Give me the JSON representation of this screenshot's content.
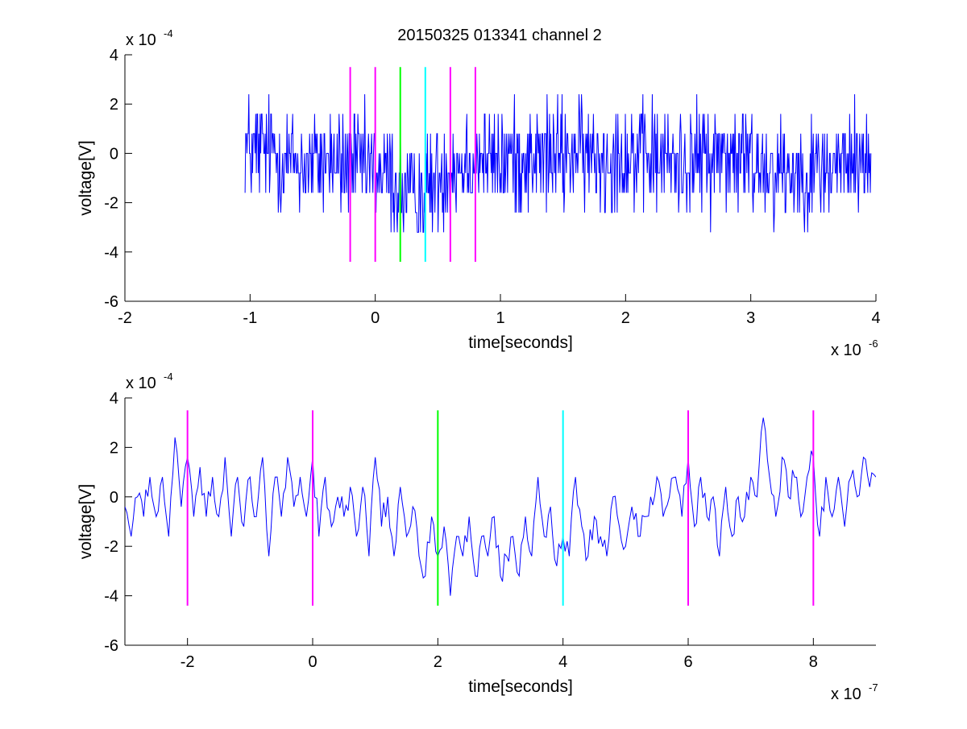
{
  "figure": {
    "title": "20150325 013341 channel 2"
  },
  "chart_data": [
    {
      "type": "line",
      "title": "20150325 013341 channel 2",
      "xlabel": "time[seconds]",
      "ylabel": "voltage[V]",
      "x_multiplier": "x 10",
      "x_exponent": "-6",
      "y_multiplier": "x 10",
      "y_exponent": "-4",
      "xlim": [
        -2,
        4
      ],
      "ylim": [
        -6,
        4
      ],
      "x_ticks": [
        -2,
        -1,
        0,
        1,
        2,
        3,
        4
      ],
      "x_tick_labels": [
        "-2",
        "-1",
        "0",
        "1",
        "2",
        "3",
        "4"
      ],
      "y_ticks": [
        -6,
        -4,
        -2,
        0,
        2,
        4
      ],
      "y_tick_labels": [
        "-6",
        "-4",
        "-2",
        "0",
        "2",
        "4"
      ],
      "grid": false,
      "series": [
        {
          "kind": "signal",
          "color": "#0000ff",
          "x_start": -1.04,
          "x_end": 3.96,
          "x": [
            -1.04,
            -0.9,
            -0.8,
            -0.7,
            -0.6,
            -0.5,
            -0.4,
            -0.3,
            -0.2,
            -0.1,
            0,
            0.1,
            0.2,
            0.3,
            0.4,
            0.5,
            0.6,
            0.7,
            0.8,
            1.0,
            1.2,
            1.4,
            1.6,
            1.8,
            2.0,
            2.2,
            2.4,
            2.6,
            2.8,
            3.0,
            3.2,
            3.4,
            3.6,
            3.8,
            3.96
          ],
          "y_mean": [
            0.2,
            0.1,
            0.0,
            -0.3,
            -0.5,
            -0.3,
            -0.2,
            -0.5,
            -0.4,
            -0.6,
            -0.7,
            -0.9,
            -1.4,
            -1.8,
            -1.6,
            -1.0,
            -0.5,
            -0.3,
            -0.2,
            -0.3,
            -0.2,
            -0.1,
            0.0,
            -0.2,
            -0.1,
            -0.2,
            -0.3,
            -0.2,
            -0.1,
            -0.4,
            -0.5,
            -0.8,
            -0.6,
            -0.3,
            -0.3
          ],
          "y_quantum": 0.8,
          "y_range": [
            -3.2,
            2.4
          ]
        }
      ],
      "markers": [
        {
          "x": -0.2,
          "color": "#ff00ff",
          "y_range": [
            -4.4,
            3.5
          ]
        },
        {
          "x": 0.0,
          "color": "#ff00ff",
          "y_range": [
            -4.4,
            3.5
          ]
        },
        {
          "x": 0.2,
          "color": "#00ff00",
          "y_range": [
            -4.4,
            3.5
          ]
        },
        {
          "x": 0.4,
          "color": "#00ffff",
          "y_range": [
            -4.4,
            3.5
          ]
        },
        {
          "x": 0.6,
          "color": "#ff00ff",
          "y_range": [
            -4.4,
            3.5
          ]
        },
        {
          "x": 0.8,
          "color": "#ff00ff",
          "y_range": [
            -4.4,
            3.5
          ]
        }
      ]
    },
    {
      "type": "line",
      "title": "",
      "xlabel": "time[seconds]",
      "ylabel": "voltage[V]",
      "x_multiplier": "x 10",
      "x_exponent": "-7",
      "y_multiplier": "x 10",
      "y_exponent": "-4",
      "xlim": [
        -3,
        9
      ],
      "ylim": [
        -6,
        4
      ],
      "x_ticks": [
        -2,
        0,
        2,
        4,
        6,
        8
      ],
      "x_tick_labels": [
        "-2",
        "0",
        "2",
        "4",
        "6",
        "8"
      ],
      "y_ticks": [
        -6,
        -4,
        -2,
        0,
        2,
        4
      ],
      "y_tick_labels": [
        "-6",
        "-4",
        "-2",
        "0",
        "2",
        "4"
      ],
      "grid": false,
      "series": [
        {
          "kind": "signal",
          "color": "#0000ff",
          "x": [
            -3.0,
            -2.9,
            -2.8,
            -2.7,
            -2.6,
            -2.5,
            -2.4,
            -2.3,
            -2.2,
            -2.1,
            -2.0,
            -1.9,
            -1.8,
            -1.7,
            -1.6,
            -1.5,
            -1.4,
            -1.3,
            -1.2,
            -1.1,
            -1.0,
            -0.9,
            -0.8,
            -0.7,
            -0.6,
            -0.5,
            -0.4,
            -0.3,
            -0.2,
            -0.1,
            0.0,
            0.1,
            0.2,
            0.3,
            0.4,
            0.5,
            0.6,
            0.7,
            0.8,
            0.9,
            1.0,
            1.1,
            1.2,
            1.3,
            1.4,
            1.5,
            1.6,
            1.7,
            1.8,
            1.9,
            2.0,
            2.1,
            2.2,
            2.3,
            2.4,
            2.5,
            2.6,
            2.7,
            2.8,
            2.9,
            3.0,
            3.1,
            3.2,
            3.3,
            3.4,
            3.5,
            3.6,
            3.7,
            3.8,
            3.9,
            4.0,
            4.1,
            4.2,
            4.3,
            4.4,
            4.5,
            4.6,
            4.7,
            4.8,
            4.9,
            5.0,
            5.1,
            5.2,
            5.3,
            5.4,
            5.5,
            5.6,
            5.7,
            5.8,
            5.9,
            6.0,
            6.1,
            6.2,
            6.3,
            6.4,
            6.5,
            6.6,
            6.7,
            6.8,
            6.9,
            7.0,
            7.1,
            7.2,
            7.3,
            7.4,
            7.5,
            7.6,
            7.7,
            7.8,
            7.9,
            8.0,
            8.1,
            8.2,
            8.3,
            8.4,
            8.5,
            8.6,
            8.7,
            8.8,
            8.9,
            9.0
          ],
          "y": [
            -0.4,
            -1.6,
            0.0,
            -0.8,
            0.8,
            -0.8,
            0.8,
            -1.6,
            2.4,
            -0.4,
            1.6,
            -0.8,
            1.2,
            -0.8,
            0.8,
            -0.8,
            1.6,
            -1.6,
            0.8,
            -1.2,
            0.8,
            -0.8,
            1.6,
            -2.4,
            0.8,
            -0.8,
            1.6,
            -0.4,
            0.8,
            -0.8,
            1.6,
            -1.6,
            0.8,
            -1.2,
            0.0,
            -0.8,
            0.4,
            -1.6,
            0.4,
            -2.4,
            1.6,
            -1.2,
            0.0,
            -2.4,
            0.4,
            -1.6,
            -0.4,
            -2.4,
            -3.2,
            -0.8,
            -2.4,
            -1.2,
            -4.0,
            -1.6,
            -2.4,
            -0.8,
            -3.2,
            -1.6,
            -2.4,
            -0.8,
            -3.2,
            -2.4,
            -1.6,
            -3.2,
            -0.8,
            -2.4,
            0.8,
            -1.6,
            -0.4,
            -2.8,
            -1.6,
            -2.4,
            0.8,
            -1.2,
            -2.4,
            -0.8,
            -1.6,
            -2.4,
            0.0,
            -1.2,
            -2.0,
            -0.4,
            -1.6,
            -0.8,
            0.0,
            0.8,
            -0.8,
            0.0,
            0.8,
            -0.8,
            1.6,
            -1.2,
            0.8,
            -0.8,
            0.0,
            -2.4,
            0.4,
            -1.6,
            0.0,
            -0.8,
            0.8,
            0.0,
            3.2,
            0.8,
            -0.8,
            1.6,
            0.0,
            0.8,
            -0.8,
            0.8,
            1.6,
            -1.6,
            0.8,
            -0.8,
            0.8,
            -1.2,
            0.8,
            0.0,
            1.6,
            0.4,
            0.8
          ],
          "detail_seed": 7
        }
      ],
      "markers": [
        {
          "x": -2,
          "color": "#ff00ff",
          "y_range": [
            -4.4,
            3.5
          ]
        },
        {
          "x": 0,
          "color": "#ff00ff",
          "y_range": [
            -4.4,
            3.5
          ]
        },
        {
          "x": 2,
          "color": "#00ff00",
          "y_range": [
            -4.4,
            3.5
          ]
        },
        {
          "x": 4,
          "color": "#00ffff",
          "y_range": [
            -4.4,
            3.5
          ]
        },
        {
          "x": 6,
          "color": "#ff00ff",
          "y_range": [
            -4.4,
            3.5
          ]
        },
        {
          "x": 8,
          "color": "#ff00ff",
          "y_range": [
            -4.4,
            3.5
          ]
        }
      ]
    }
  ]
}
